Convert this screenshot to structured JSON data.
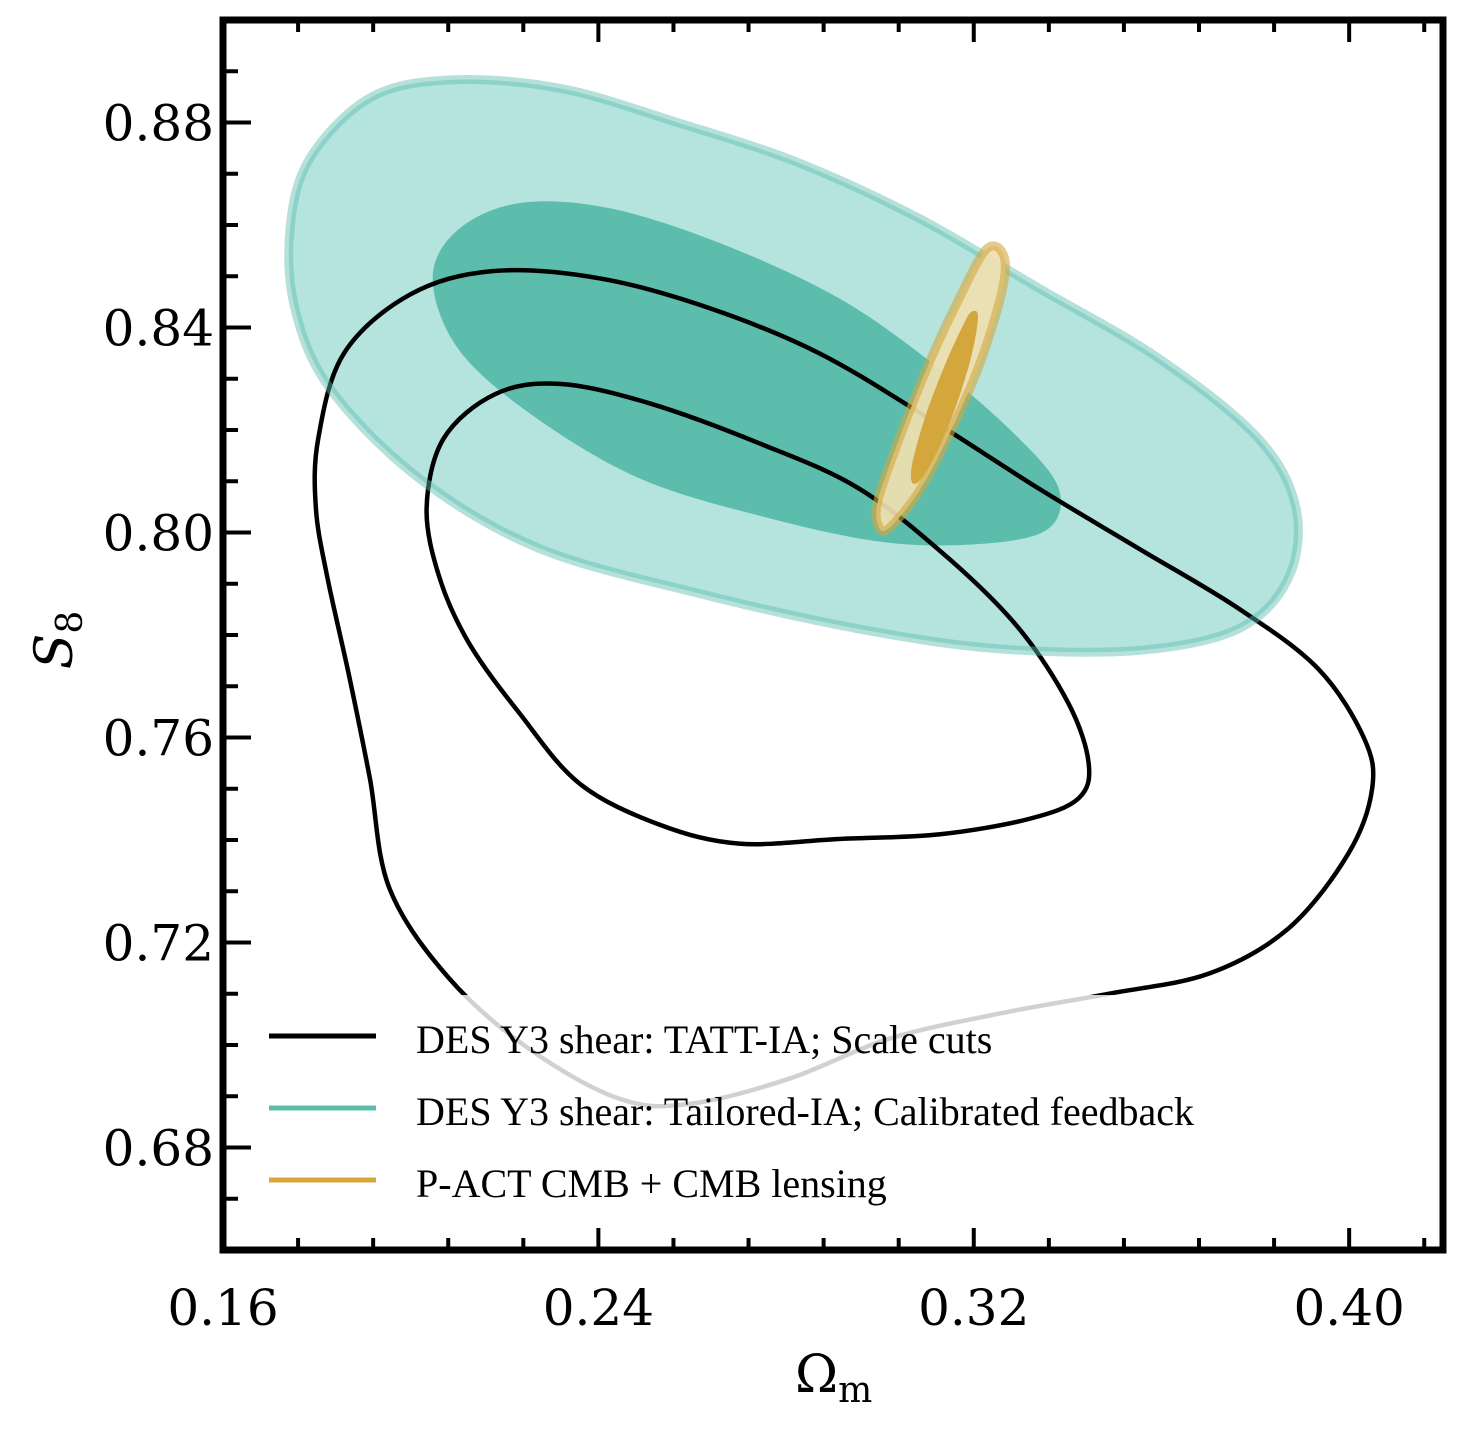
{
  "chart_data": {
    "type": "contour",
    "title": "",
    "xlabel": "Ω_m",
    "xlabel_main": "Ω",
    "xlabel_sub": "m",
    "ylabel": "S_8",
    "ylabel_main": "S",
    "ylabel_sub": "8",
    "xlim": [
      0.16,
      0.42
    ],
    "ylim": [
      0.66,
      0.9
    ],
    "xticks": [
      0.16,
      0.24,
      0.32,
      0.4
    ],
    "xtick_labels": [
      "0.16",
      "0.24",
      "0.32",
      "0.40"
    ],
    "xminor_step": 0.016,
    "yticks": [
      0.68,
      0.72,
      0.76,
      0.8,
      0.84,
      0.88
    ],
    "ytick_labels": [
      "0.68",
      "0.72",
      "0.76",
      "0.80",
      "0.84",
      "0.88"
    ],
    "yminor_step": 0.01,
    "grid": false,
    "legend_position": "bottom-left",
    "series": [
      {
        "name": "DES Y3 shear: Tailored-IA; Calibrated feedback",
        "style": "filled",
        "color": "#5dbdad",
        "fill_1sigma": "#5dbdad",
        "fill_2sigma": "#b5e4df",
        "edge_color": "#86d3c6",
        "contour_2sigma": [
          [
            0.1743,
            0.8594
          ],
          [
            0.1785,
            0.873
          ],
          [
            0.1913,
            0.8848
          ],
          [
            0.2083,
            0.8883
          ],
          [
            0.2317,
            0.8867
          ],
          [
            0.2572,
            0.8799
          ],
          [
            0.2828,
            0.8721
          ],
          [
            0.3083,
            0.8613
          ],
          [
            0.3338,
            0.8477
          ],
          [
            0.3594,
            0.834
          ],
          [
            0.3806,
            0.8184
          ],
          [
            0.3887,
            0.8047
          ],
          [
            0.387,
            0.791
          ],
          [
            0.3764,
            0.7812
          ],
          [
            0.3551,
            0.777
          ],
          [
            0.3253,
            0.7773
          ],
          [
            0.2955,
            0.7812
          ],
          [
            0.2615,
            0.7881
          ],
          [
            0.2274,
            0.7969
          ],
          [
            0.2019,
            0.8105
          ],
          [
            0.1828,
            0.8281
          ],
          [
            0.1753,
            0.8438
          ]
        ],
        "contour_1sigma": [
          [
            0.2047,
            0.8496
          ],
          [
            0.21,
            0.859
          ],
          [
            0.2232,
            0.8643
          ],
          [
            0.2423,
            0.8633
          ],
          [
            0.2658,
            0.8565
          ],
          [
            0.2913,
            0.8457
          ],
          [
            0.3126,
            0.832
          ],
          [
            0.3296,
            0.8184
          ],
          [
            0.3381,
            0.8086
          ],
          [
            0.336,
            0.8008
          ],
          [
            0.3232,
            0.7979
          ],
          [
            0.3019,
            0.798
          ],
          [
            0.2764,
            0.8028
          ],
          [
            0.2487,
            0.8106
          ],
          [
            0.2253,
            0.8233
          ],
          [
            0.21,
            0.836
          ]
        ]
      },
      {
        "name": "DES Y3 shear: TATT-IA; Scale cuts",
        "style": "line",
        "color": "#000000",
        "contour_2sigma": [
          [
            0.1803,
            0.8184
          ],
          [
            0.1858,
            0.835
          ],
          [
            0.1998,
            0.8464
          ],
          [
            0.2174,
            0.851
          ],
          [
            0.2402,
            0.8496
          ],
          [
            0.2636,
            0.8438
          ],
          [
            0.287,
            0.835
          ],
          [
            0.3104,
            0.8223
          ],
          [
            0.3338,
            0.8086
          ],
          [
            0.3551,
            0.7969
          ],
          [
            0.3764,
            0.7852
          ],
          [
            0.3934,
            0.7734
          ],
          [
            0.4032,
            0.7598
          ],
          [
            0.4049,
            0.75
          ],
          [
            0.3998,
            0.7373
          ],
          [
            0.387,
            0.7227
          ],
          [
            0.37,
            0.7139
          ],
          [
            0.3487,
            0.71
          ],
          [
            0.3253,
            0.7061
          ],
          [
            0.3019,
            0.7012
          ],
          [
            0.2806,
            0.6934
          ],
          [
            0.2594,
            0.6885
          ],
          [
            0.2445,
            0.6895
          ],
          [
            0.2253,
            0.6992
          ],
          [
            0.2083,
            0.7129
          ],
          [
            0.1955,
            0.7305
          ],
          [
            0.1913,
            0.752
          ],
          [
            0.187,
            0.7715
          ],
          [
            0.1823,
            0.791
          ],
          [
            0.1798,
            0.8047
          ]
        ],
        "contour_1sigma": [
          [
            0.2034,
            0.8047
          ],
          [
            0.207,
            0.8183
          ],
          [
            0.218,
            0.827
          ],
          [
            0.2317,
            0.829
          ],
          [
            0.2509,
            0.8252
          ],
          [
            0.2743,
            0.8174
          ],
          [
            0.2955,
            0.8086
          ],
          [
            0.3147,
            0.7949
          ],
          [
            0.3296,
            0.7813
          ],
          [
            0.3402,
            0.7666
          ],
          [
            0.3445,
            0.7549
          ],
          [
            0.3423,
            0.7481
          ],
          [
            0.3317,
            0.7441
          ],
          [
            0.3126,
            0.7411
          ],
          [
            0.2913,
            0.7402
          ],
          [
            0.27,
            0.7393
          ],
          [
            0.253,
            0.743
          ],
          [
            0.236,
            0.751
          ],
          [
            0.2232,
            0.7647
          ],
          [
            0.2125,
            0.7783
          ],
          [
            0.2062,
            0.791
          ]
        ]
      },
      {
        "name": "P-ACT CMB + CMB lensing",
        "style": "filled",
        "color": "#d4a73c",
        "fill_1sigma": "#d4a73c",
        "fill_2sigma": "#f0dfb0",
        "edge_color": "#d4a73c",
        "contour_2sigma": [
          [
            0.3226,
            0.8552
          ],
          [
            0.3264,
            0.854
          ],
          [
            0.326,
            0.847
          ],
          [
            0.3213,
            0.833
          ],
          [
            0.3147,
            0.819
          ],
          [
            0.3083,
            0.808
          ],
          [
            0.3021,
            0.801
          ],
          [
            0.2998,
            0.801
          ],
          [
            0.2995,
            0.806
          ],
          [
            0.304,
            0.818
          ],
          [
            0.31,
            0.832
          ],
          [
            0.316,
            0.844
          ]
        ],
        "contour_1sigma": [
          [
            0.3194,
            0.843
          ],
          [
            0.3209,
            0.842
          ],
          [
            0.3191,
            0.833
          ],
          [
            0.3147,
            0.821
          ],
          [
            0.31,
            0.812
          ],
          [
            0.3072,
            0.8095
          ],
          [
            0.3068,
            0.813
          ],
          [
            0.3098,
            0.823
          ],
          [
            0.314,
            0.833
          ],
          [
            0.3175,
            0.84
          ]
        ]
      }
    ],
    "legend": [
      {
        "label": "DES Y3 shear: TATT-IA; Scale cuts",
        "color": "#000000"
      },
      {
        "label": "DES Y3 shear: Tailored-IA; Calibrated feedback",
        "color": "#5dbdad"
      },
      {
        "label": "P-ACT CMB + CMB lensing",
        "color": "#d4a73c"
      }
    ]
  }
}
